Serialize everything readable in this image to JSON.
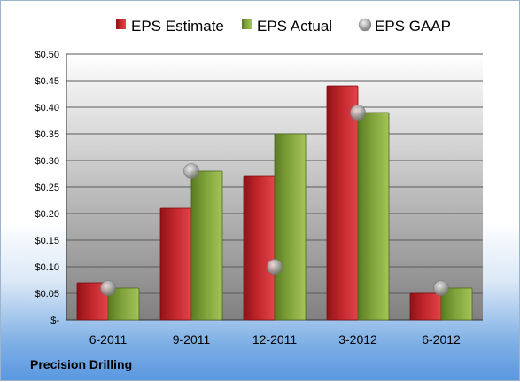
{
  "footer": {
    "company": "Precision Drilling"
  },
  "colors": {
    "estimate": "#c0262c",
    "actual": "#7fa23a",
    "gaap": "#a9a9a9",
    "plot_top": "#ffffff",
    "plot_bottom": "#808080"
  },
  "chart_data": {
    "type": "bar",
    "categories": [
      "6-2011",
      "9-2011",
      "12-2011",
      "3-2012",
      "6-2012"
    ],
    "series": [
      {
        "name": "EPS Estimate",
        "kind": "bar",
        "values": [
          0.07,
          0.21,
          0.27,
          0.44,
          0.05
        ]
      },
      {
        "name": "EPS Actual",
        "kind": "bar",
        "values": [
          0.06,
          0.28,
          0.35,
          0.39,
          0.06
        ]
      },
      {
        "name": "EPS GAAP",
        "kind": "marker",
        "values": [
          0.06,
          0.28,
          0.1,
          0.39,
          0.06
        ]
      }
    ],
    "ylim": [
      0,
      0.5
    ],
    "ytick_values": [
      0,
      0.05,
      0.1,
      0.15,
      0.2,
      0.25,
      0.3,
      0.35,
      0.4,
      0.45,
      0.5
    ],
    "ytick_labels": [
      "$-",
      "$0.05",
      "$0.10",
      "$0.15",
      "$0.20",
      "$0.25",
      "$0.30",
      "$0.35",
      "$0.40",
      "$0.45",
      "$0.50"
    ],
    "grid": true,
    "legend_position": "top",
    "title": "",
    "xlabel": "",
    "ylabel": ""
  }
}
